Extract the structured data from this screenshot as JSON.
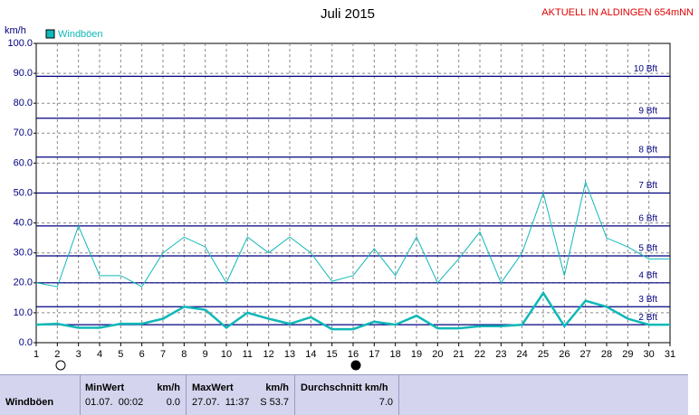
{
  "chart_data": {
    "type": "line",
    "title": "Juli 2015",
    "subtitle": "AKTUELL IN ALDINGEN 654mNN",
    "y_label": "km/h",
    "x": [
      1,
      2,
      3,
      4,
      5,
      6,
      7,
      8,
      9,
      10,
      11,
      12,
      13,
      14,
      15,
      16,
      17,
      18,
      19,
      20,
      21,
      22,
      23,
      24,
      25,
      26,
      27,
      28,
      29,
      30,
      31
    ],
    "xlim": [
      1,
      31
    ],
    "xticks": [
      1,
      2,
      3,
      4,
      5,
      6,
      7,
      8,
      9,
      10,
      11,
      12,
      13,
      14,
      15,
      16,
      17,
      18,
      19,
      20,
      21,
      22,
      23,
      24,
      25,
      26,
      27,
      28,
      29,
      30,
      31
    ],
    "ylim": [
      0,
      100
    ],
    "yticks": [
      {
        "value": 0,
        "label": "0.0"
      },
      {
        "value": 10,
        "label": "10.0"
      },
      {
        "value": 20,
        "label": "20.0"
      },
      {
        "value": 30,
        "label": "30.0"
      },
      {
        "value": 40,
        "label": "40.0"
      },
      {
        "value": 50,
        "label": "50.0"
      },
      {
        "value": 60,
        "label": "60.0"
      },
      {
        "value": 70,
        "label": "70.0"
      },
      {
        "value": 80,
        "label": "80.0"
      },
      {
        "value": 90,
        "label": "90.0"
      },
      {
        "value": 100,
        "label": "100.0"
      }
    ],
    "grid": true,
    "legend": "top-left",
    "series": [
      {
        "name": "Windböen",
        "color": "#10b8b8",
        "width": 1,
        "values": [
          20,
          18.7,
          39,
          22.4,
          22.4,
          18.7,
          30,
          35.3,
          32,
          20,
          35.3,
          30,
          35.3,
          30,
          20.5,
          22.4,
          31.4,
          22.4,
          35.3,
          20,
          28,
          37,
          20,
          30,
          50,
          22.4,
          53.7,
          35,
          32,
          28,
          28
        ]
      },
      {
        "color": "#10b8b8",
        "width": 2.5,
        "values": [
          6,
          6.3,
          5,
          5,
          6.3,
          6.3,
          8,
          12,
          11,
          5,
          10,
          8,
          6.3,
          8.5,
          4.5,
          4.5,
          7,
          6,
          9,
          4.8,
          4.8,
          5.5,
          5.5,
          6,
          16.6,
          5.5,
          14,
          12,
          8,
          6,
          6
        ]
      }
    ],
    "reference_color": "#000080",
    "reference_lines": [
      {
        "value": 6,
        "label": "2 Bft"
      },
      {
        "value": 12,
        "label": "3 Bft"
      },
      {
        "value": 20,
        "label": "4 Bft"
      },
      {
        "value": 29,
        "label": "5 Bft"
      },
      {
        "value": 39,
        "label": "6 Bft"
      },
      {
        "value": 50,
        "label": "7 Bft"
      },
      {
        "value": 62,
        "label": "8 Bft"
      },
      {
        "value": 75,
        "label": "9 Bft"
      },
      {
        "value": 89,
        "label": "10 Bft"
      }
    ]
  },
  "summary_table": {
    "row_label": "Windböen",
    "min": {
      "header": "MinWert",
      "unit": "km/h",
      "date": "01.07.  00:02",
      "value": "0.0"
    },
    "max": {
      "header": "MaxWert",
      "unit": "km/h",
      "date": "27.07.  11:37",
      "value": "S 53.7"
    },
    "avg": {
      "header": "Durchschnitt km/h",
      "value": "7.0"
    }
  }
}
